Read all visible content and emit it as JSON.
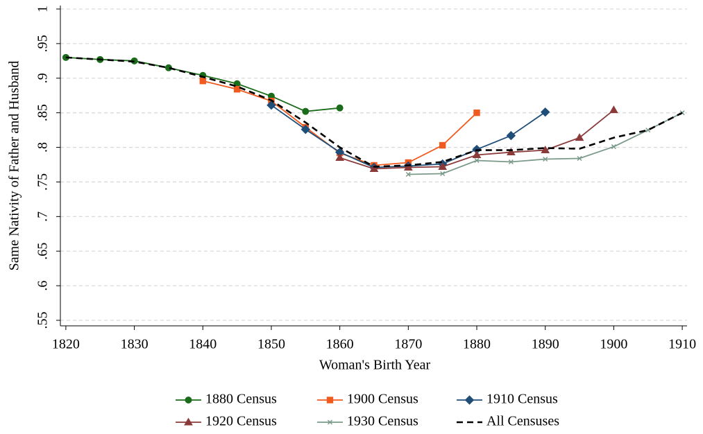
{
  "chart_data": {
    "type": "line",
    "xlabel": "Woman's Birth Year",
    "ylabel": "Same Nativity of Father and Husband",
    "x": [
      1820,
      1825,
      1830,
      1835,
      1840,
      1845,
      1850,
      1855,
      1860,
      1865,
      1870,
      1875,
      1880,
      1885,
      1890,
      1895,
      1900,
      1905,
      1910
    ],
    "series": [
      {
        "name": "1880 Census",
        "color": "#1a6b1a",
        "marker": "circle",
        "dashed": false,
        "values": [
          0.93,
          0.927,
          0.925,
          0.915,
          0.904,
          0.892,
          0.874,
          0.852,
          0.857,
          null,
          null,
          null,
          null,
          null,
          null,
          null,
          null,
          null,
          null
        ]
      },
      {
        "name": "1900 Census",
        "color": "#f05a1e",
        "marker": "square",
        "dashed": false,
        "values": [
          null,
          null,
          null,
          null,
          0.896,
          0.884,
          0.867,
          0.829,
          0.792,
          0.774,
          0.778,
          0.803,
          0.85,
          null,
          null,
          null,
          null,
          null,
          null
        ]
      },
      {
        "name": "1910 Census",
        "color": "#1f4e79",
        "marker": "diamond",
        "dashed": false,
        "values": [
          null,
          null,
          null,
          null,
          null,
          null,
          0.861,
          0.826,
          0.793,
          0.771,
          0.773,
          0.776,
          0.797,
          0.817,
          0.851,
          null,
          null,
          null,
          null
        ]
      },
      {
        "name": "1920 Census",
        "color": "#8b3a3a",
        "marker": "triangle",
        "dashed": false,
        "values": [
          null,
          null,
          null,
          null,
          null,
          null,
          null,
          null,
          0.785,
          0.769,
          0.771,
          0.772,
          0.789,
          0.793,
          0.796,
          0.814,
          0.854,
          null,
          null
        ]
      },
      {
        "name": "1930 Census",
        "color": "#7a9a8a",
        "marker": "x",
        "dashed": false,
        "values": [
          null,
          null,
          null,
          null,
          null,
          null,
          null,
          null,
          null,
          null,
          0.761,
          0.762,
          0.781,
          0.779,
          0.783,
          0.784,
          0.801,
          0.825,
          0.85
        ]
      },
      {
        "name": "All Censuses",
        "color": "#000000",
        "marker": "none",
        "dashed": true,
        "values": [
          0.93,
          0.927,
          0.924,
          0.915,
          0.902,
          0.888,
          0.868,
          0.836,
          0.8,
          0.772,
          0.774,
          0.779,
          0.796,
          0.796,
          0.799,
          0.798,
          0.814,
          0.825,
          0.85
        ]
      }
    ],
    "xlim": [
      1819.2,
      1910.7
    ],
    "ylim": [
      0.542,
      1.005
    ],
    "xticks": [
      1820,
      1830,
      1840,
      1850,
      1860,
      1870,
      1880,
      1890,
      1900,
      1910
    ],
    "yticks": [
      {
        "value": 0.55,
        "label": ".55"
      },
      {
        "value": 0.6,
        "label": ".6"
      },
      {
        "value": 0.65,
        "label": ".65"
      },
      {
        "value": 0.7,
        "label": ".7"
      },
      {
        "value": 0.75,
        "label": ".75"
      },
      {
        "value": 0.8,
        "label": ".8"
      },
      {
        "value": 0.85,
        "label": ".85"
      },
      {
        "value": 0.9,
        "label": ".9"
      },
      {
        "value": 0.95,
        "label": ".95"
      },
      1
    ],
    "grid": true,
    "legend": "bottom"
  }
}
